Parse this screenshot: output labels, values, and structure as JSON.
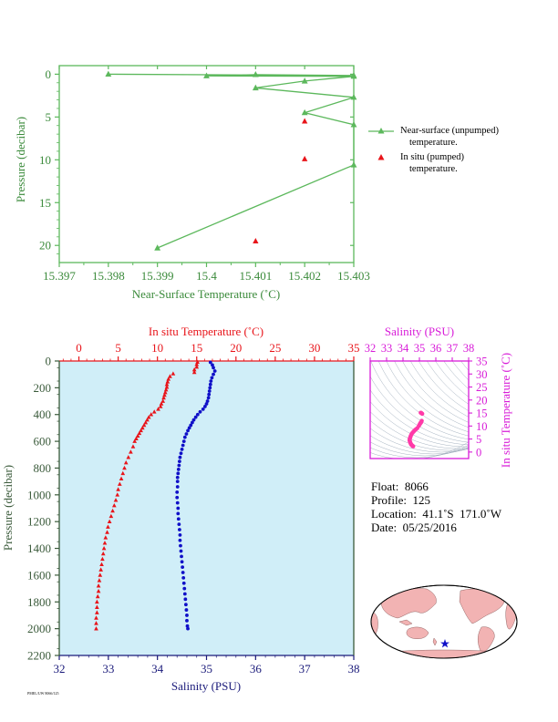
{
  "colors": {
    "green": "#5cb85c",
    "red": "#e8141a",
    "blue": "#1010c8",
    "magenta": "#d81bd8",
    "pink": "#ff3aa8",
    "navy": "#1a1a7a",
    "axis_green": "#3a8a3a",
    "plot_bg": "#d0eef8"
  },
  "chart_data": [
    {
      "type": "line",
      "xlabel": "Near-Surface Temperature (˚C)",
      "ylabel": "Pressure (decibar)",
      "xlim": [
        15.397,
        15.403
      ],
      "ylim": [
        22,
        -1
      ],
      "xticks": [
        "15.397",
        "15.398",
        "15.399",
        "15.4",
        "15.401",
        "15.402",
        "15.403"
      ],
      "yticks": [
        "0",
        "5",
        "10",
        "15",
        "20"
      ],
      "series": [
        {
          "name": "Near-surface (unpumped) temperature.",
          "marker": "triangle",
          "points": [
            [
              15.398,
              0.0
            ],
            [
              15.403,
              0.15
            ],
            [
              15.401,
              0.05
            ],
            [
              15.4,
              0.2
            ],
            [
              15.403,
              0.25
            ],
            [
              15.402,
              0.8
            ],
            [
              15.401,
              1.6
            ],
            [
              15.403,
              2.7
            ],
            [
              15.402,
              4.5
            ],
            [
              15.403,
              5.9
            ],
            [
              15.403,
              10.6
            ],
            [
              15.399,
              20.3
            ]
          ]
        },
        {
          "name": "In situ (pumped) temperature.",
          "marker": "triangle",
          "points": [
            [
              15.402,
              5.5
            ],
            [
              15.402,
              9.9
            ],
            [
              15.401,
              19.5
            ]
          ]
        }
      ],
      "legend": {
        "line1": "Near-surface (unpumped)",
        "line2": "temperature.",
        "line3": "In situ (pumped)",
        "line4": "temperature."
      }
    },
    {
      "type": "scatter",
      "top_xlabel": "In situ Temperature (˚C)",
      "bottom_xlabel": "Salinity (PSU)",
      "ylabel": "Pressure (decibar)",
      "top_xlim": [
        -2.5,
        35
      ],
      "top_xticks": [
        "0",
        "5",
        "10",
        "15",
        "20",
        "25",
        "30",
        "35"
      ],
      "bottom_xlim": [
        32,
        38
      ],
      "bottom_xticks": [
        "32",
        "33",
        "34",
        "35",
        "36",
        "37",
        "38"
      ],
      "ylim": [
        2200,
        0
      ],
      "yticks": [
        "0",
        "200",
        "400",
        "600",
        "800",
        "1000",
        "1200",
        "1400",
        "1600",
        "1800",
        "2000",
        "2200"
      ],
      "temperature": [
        [
          15.1,
          8
        ],
        [
          15.0,
          25
        ],
        [
          15.0,
          45
        ],
        [
          14.7,
          65
        ],
        [
          14.7,
          85
        ],
        [
          12.0,
          95
        ],
        [
          11.6,
          115
        ],
        [
          11.4,
          135
        ],
        [
          11.3,
          155
        ],
        [
          11.2,
          175
        ],
        [
          11.2,
          195
        ],
        [
          11.1,
          215
        ],
        [
          11.0,
          235
        ],
        [
          10.9,
          255
        ],
        [
          10.8,
          275
        ],
        [
          10.7,
          300
        ],
        [
          10.5,
          320
        ],
        [
          10.4,
          340
        ],
        [
          10.1,
          360
        ],
        [
          9.6,
          380
        ],
        [
          9.2,
          400
        ],
        [
          8.9,
          420
        ],
        [
          8.7,
          440
        ],
        [
          8.5,
          460
        ],
        [
          8.3,
          480
        ],
        [
          8.1,
          500
        ],
        [
          7.9,
          520
        ],
        [
          7.7,
          540
        ],
        [
          7.5,
          560
        ],
        [
          7.3,
          580
        ],
        [
          7.1,
          600
        ],
        [
          6.9,
          640
        ],
        [
          6.6,
          680
        ],
        [
          6.3,
          720
        ],
        [
          6.0,
          760
        ],
        [
          5.8,
          800
        ],
        [
          5.6,
          840
        ],
        [
          5.4,
          880
        ],
        [
          5.2,
          920
        ],
        [
          5.0,
          960
        ],
        [
          4.9,
          1000
        ],
        [
          4.7,
          1040
        ],
        [
          4.5,
          1080
        ],
        [
          4.3,
          1120
        ],
        [
          4.1,
          1160
        ],
        [
          3.9,
          1200
        ],
        [
          3.7,
          1240
        ],
        [
          3.6,
          1280
        ],
        [
          3.4,
          1320
        ],
        [
          3.3,
          1360
        ],
        [
          3.2,
          1400
        ],
        [
          3.1,
          1440
        ],
        [
          3.0,
          1480
        ],
        [
          2.9,
          1520
        ],
        [
          2.8,
          1560
        ],
        [
          2.7,
          1600
        ],
        [
          2.6,
          1640
        ],
        [
          2.5,
          1680
        ],
        [
          2.5,
          1720
        ],
        [
          2.4,
          1760
        ],
        [
          2.3,
          1800
        ],
        [
          2.3,
          1840
        ],
        [
          2.3,
          1880
        ],
        [
          2.2,
          1920
        ],
        [
          2.2,
          1960
        ],
        [
          2.2,
          2000
        ]
      ],
      "salinity": [
        [
          35.08,
          10
        ],
        [
          35.12,
          30
        ],
        [
          35.14,
          50
        ],
        [
          35.17,
          75
        ],
        [
          35.14,
          100
        ],
        [
          35.11,
          125
        ],
        [
          35.09,
          150
        ],
        [
          35.08,
          175
        ],
        [
          35.07,
          200
        ],
        [
          35.06,
          225
        ],
        [
          35.05,
          250
        ],
        [
          35.04,
          275
        ],
        [
          35.02,
          300
        ],
        [
          35.0,
          320
        ],
        [
          34.97,
          340
        ],
        [
          34.93,
          360
        ],
        [
          34.87,
          380
        ],
        [
          34.82,
          400
        ],
        [
          34.78,
          420
        ],
        [
          34.74,
          440
        ],
        [
          34.71,
          460
        ],
        [
          34.68,
          480
        ],
        [
          34.65,
          500
        ],
        [
          34.62,
          520
        ],
        [
          34.59,
          545
        ],
        [
          34.56,
          570
        ],
        [
          34.54,
          600
        ],
        [
          34.52,
          630
        ],
        [
          34.5,
          660
        ],
        [
          34.48,
          690
        ],
        [
          34.46,
          720
        ],
        [
          34.45,
          750
        ],
        [
          34.44,
          780
        ],
        [
          34.43,
          810
        ],
        [
          34.42,
          840
        ],
        [
          34.41,
          870
        ],
        [
          34.41,
          900
        ],
        [
          34.41,
          940
        ],
        [
          34.4,
          980
        ],
        [
          34.4,
          1020
        ],
        [
          34.41,
          1060
        ],
        [
          34.42,
          1100
        ],
        [
          34.42,
          1140
        ],
        [
          34.43,
          1180
        ],
        [
          34.44,
          1220
        ],
        [
          34.45,
          1260
        ],
        [
          34.46,
          1300
        ],
        [
          34.46,
          1340
        ],
        [
          34.47,
          1380
        ],
        [
          34.48,
          1420
        ],
        [
          34.49,
          1460
        ],
        [
          34.5,
          1500
        ],
        [
          34.51,
          1540
        ],
        [
          34.52,
          1580
        ],
        [
          34.53,
          1620
        ],
        [
          34.54,
          1660
        ],
        [
          34.55,
          1700
        ],
        [
          34.56,
          1740
        ],
        [
          34.57,
          1780
        ],
        [
          34.58,
          1820
        ],
        [
          34.59,
          1860
        ],
        [
          34.6,
          1900
        ],
        [
          34.6,
          1940
        ],
        [
          34.61,
          1980
        ],
        [
          34.62,
          2000
        ]
      ]
    },
    {
      "type": "scatter",
      "title": "Salinity (PSU)",
      "ylabel": "In situ Temperature (˚C)",
      "xlim": [
        32,
        38
      ],
      "xticks": [
        "32",
        "33",
        "34",
        "35",
        "36",
        "37",
        "38"
      ],
      "ylim": [
        -2.5,
        35
      ],
      "yticks": [
        "0",
        "5",
        "10",
        "15",
        "20",
        "25",
        "30",
        "35"
      ],
      "ts_points": [
        [
          35.08,
          15.1
        ],
        [
          35.12,
          15.0
        ],
        [
          35.17,
          14.7
        ],
        [
          35.14,
          12.0
        ],
        [
          35.1,
          11.4
        ],
        [
          35.07,
          11.2
        ],
        [
          35.05,
          11.0
        ],
        [
          35.02,
          10.7
        ],
        [
          34.97,
          10.1
        ],
        [
          34.87,
          9.2
        ],
        [
          34.78,
          8.7
        ],
        [
          34.71,
          8.3
        ],
        [
          34.65,
          7.9
        ],
        [
          34.59,
          7.5
        ],
        [
          34.54,
          7.1
        ],
        [
          34.5,
          6.6
        ],
        [
          34.46,
          6.0
        ],
        [
          34.44,
          5.6
        ],
        [
          34.42,
          5.2
        ],
        [
          34.41,
          4.9
        ],
        [
          34.4,
          4.5
        ],
        [
          34.42,
          4.1
        ],
        [
          34.44,
          3.7
        ],
        [
          34.46,
          3.4
        ],
        [
          34.48,
          3.1
        ],
        [
          34.5,
          2.9
        ],
        [
          34.53,
          2.7
        ],
        [
          34.56,
          2.5
        ],
        [
          34.59,
          2.3
        ],
        [
          34.62,
          2.2
        ]
      ]
    }
  ],
  "info": {
    "float_line": "Float:  8066",
    "profile_line": "Profile:  125",
    "location_line": "Location:  41.1˚S  171.0˚W",
    "date_line": "Date:  05/25/2016"
  },
  "footer": {
    "text": "PMEL/UW 8066/125"
  }
}
